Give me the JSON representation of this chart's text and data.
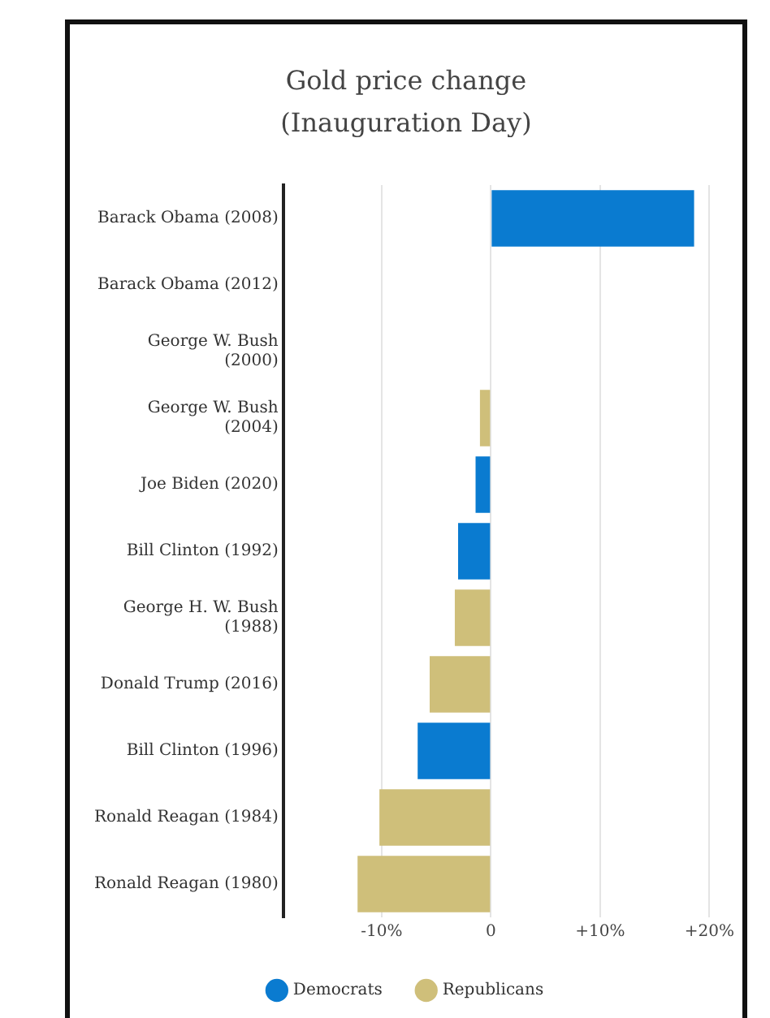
{
  "chart_data": {
    "type": "bar",
    "orientation": "horizontal",
    "title": "Gold price change (Inauguration Day)",
    "categories": [
      "Barack Obama (2008)",
      "Barack Obama (2012)",
      "George W. Bush (2000)",
      "George W. Bush (2004)",
      "Joe Biden (2020)",
      "Bill Clinton (1992)",
      "George H. W. Bush (1988)",
      "Donald Trump (2016)",
      "Bill Clinton (1996)",
      "Ronald Reagan (1984)",
      "Ronald Reagan (1980)"
    ],
    "series": [
      {
        "name": "Democrats",
        "color": "#0a7bd0",
        "values": [
          18.6,
          0,
          null,
          null,
          -1.4,
          -3.0,
          null,
          null,
          -6.7,
          null,
          null
        ]
      },
      {
        "name": "Republicans",
        "color": "#cfbf7a",
        "values": [
          null,
          null,
          0,
          -1.0,
          null,
          null,
          -3.3,
          -5.6,
          null,
          -10.2,
          -12.2
        ]
      }
    ],
    "xlim": [
      -19,
      20
    ],
    "xticks": [
      {
        "value": -10,
        "label": "-10%"
      },
      0,
      {
        "value": 10,
        "label": "+10%"
      },
      {
        "value": 20,
        "label": "+20%"
      }
    ],
    "grid": "x",
    "legend": "bottom"
  }
}
